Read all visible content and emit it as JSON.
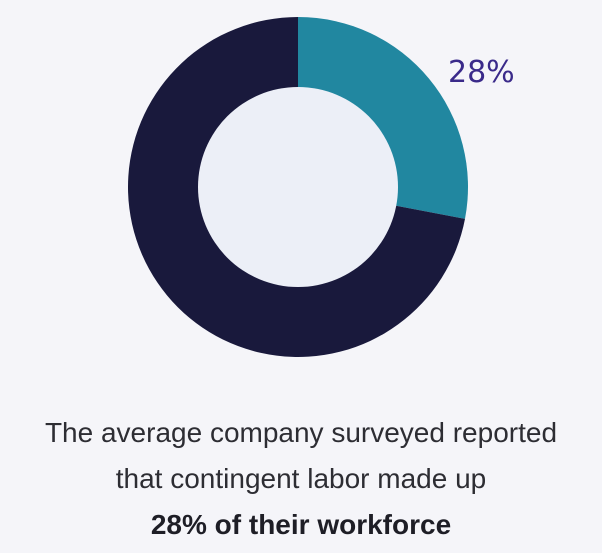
{
  "chart_data": {
    "type": "pie",
    "donut": true,
    "slices": [
      {
        "value": 28,
        "color": "#2187a0",
        "label": "28%"
      },
      {
        "value": 72,
        "color": "#19193c",
        "label": ""
      }
    ],
    "hole_color": "#eceff7",
    "title": "",
    "legend": "none"
  },
  "caption": {
    "line1": "The average company surveyed reported",
    "line2": "that contingent labor made up",
    "line3": "28% of their workforce"
  },
  "colors": {
    "background": "#f5f5f9",
    "label": "#3a2a8a"
  }
}
